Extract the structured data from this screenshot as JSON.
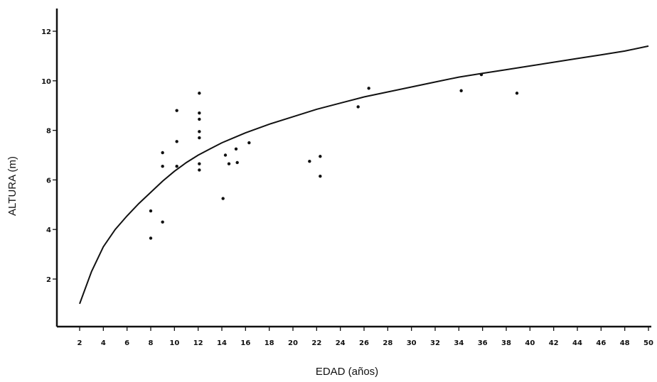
{
  "chart_data": {
    "type": "scatter",
    "title": "",
    "xlabel": "EDAD (años)",
    "ylabel": "ALTURA (m)",
    "xlim": [
      0,
      50
    ],
    "ylim": [
      0,
      13
    ],
    "x_ticks": [
      2,
      4,
      6,
      8,
      10,
      12,
      14,
      16,
      18,
      20,
      22,
      24,
      26,
      28,
      30,
      32,
      34,
      36,
      38,
      40,
      42,
      44,
      46,
      48,
      50
    ],
    "y_ticks": [
      2,
      4,
      6,
      8,
      10,
      12
    ],
    "grid": false,
    "legend": "none",
    "points": [
      {
        "x": 8.0,
        "y": 4.75
      },
      {
        "x": 8.0,
        "y": 3.65
      },
      {
        "x": 9.0,
        "y": 7.1
      },
      {
        "x": 9.0,
        "y": 6.55
      },
      {
        "x": 9.0,
        "y": 4.3
      },
      {
        "x": 10.2,
        "y": 8.8
      },
      {
        "x": 10.2,
        "y": 7.55
      },
      {
        "x": 10.2,
        "y": 6.55
      },
      {
        "x": 12.1,
        "y": 9.5
      },
      {
        "x": 12.1,
        "y": 8.7
      },
      {
        "x": 12.1,
        "y": 8.45
      },
      {
        "x": 12.1,
        "y": 7.95
      },
      {
        "x": 12.1,
        "y": 7.7
      },
      {
        "x": 12.1,
        "y": 6.65
      },
      {
        "x": 12.1,
        "y": 6.4
      },
      {
        "x": 14.1,
        "y": 5.25
      },
      {
        "x": 14.3,
        "y": 7.0
      },
      {
        "x": 14.6,
        "y": 6.65
      },
      {
        "x": 15.2,
        "y": 7.25
      },
      {
        "x": 15.3,
        "y": 6.7
      },
      {
        "x": 16.3,
        "y": 7.5
      },
      {
        "x": 21.4,
        "y": 6.75
      },
      {
        "x": 22.3,
        "y": 6.95
      },
      {
        "x": 22.3,
        "y": 6.15
      },
      {
        "x": 25.5,
        "y": 8.95
      },
      {
        "x": 26.4,
        "y": 9.7
      },
      {
        "x": 34.2,
        "y": 9.6
      },
      {
        "x": 35.9,
        "y": 10.25
      },
      {
        "x": 38.9,
        "y": 9.5
      }
    ],
    "fitted_curve": {
      "x": [
        2,
        3,
        4,
        5,
        6,
        7,
        8,
        9,
        10,
        11,
        12,
        13,
        14,
        15,
        16,
        18,
        20,
        22,
        24,
        26,
        28,
        30,
        32,
        34,
        36,
        38,
        40,
        42,
        44,
        46,
        48,
        50
      ],
      "y": [
        1.0,
        2.3,
        3.3,
        4.0,
        4.55,
        5.05,
        5.5,
        5.95,
        6.35,
        6.7,
        7.0,
        7.25,
        7.5,
        7.7,
        7.9,
        8.25,
        8.55,
        8.85,
        9.1,
        9.35,
        9.55,
        9.75,
        9.95,
        10.15,
        10.3,
        10.45,
        10.6,
        10.75,
        10.9,
        11.05,
        11.2,
        11.4
      ]
    },
    "colors": {
      "ink": "#111111",
      "background": "#ffffff"
    }
  }
}
